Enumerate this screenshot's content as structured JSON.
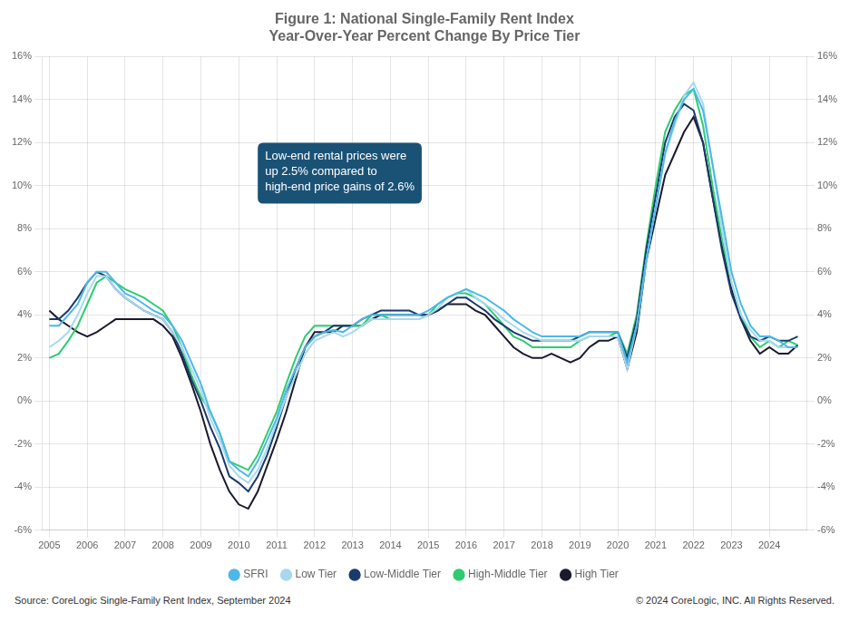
{
  "chart_data": {
    "type": "line",
    "title": "Figure 1: National Single-Family Rent Index\nYear-Over-Year Percent Change By Price Tier",
    "x": [
      2005.0,
      2005.25,
      2005.5,
      2005.75,
      2006.0,
      2006.25,
      2006.5,
      2006.75,
      2007.0,
      2007.25,
      2007.5,
      2007.75,
      2008.0,
      2008.25,
      2008.5,
      2008.75,
      2009.0,
      2009.25,
      2009.5,
      2009.75,
      2010.0,
      2010.25,
      2010.5,
      2010.75,
      2011.0,
      2011.25,
      2011.5,
      2011.75,
      2012.0,
      2012.25,
      2012.5,
      2012.75,
      2013.0,
      2013.25,
      2013.5,
      2013.75,
      2014.0,
      2014.25,
      2014.5,
      2014.75,
      2015.0,
      2015.25,
      2015.5,
      2015.75,
      2016.0,
      2016.25,
      2016.5,
      2016.75,
      2017.0,
      2017.25,
      2017.5,
      2017.75,
      2018.0,
      2018.25,
      2018.5,
      2018.75,
      2019.0,
      2019.25,
      2019.5,
      2019.75,
      2020.0,
      2020.25,
      2020.5,
      2020.75,
      2021.0,
      2021.25,
      2021.5,
      2021.75,
      2022.0,
      2022.25,
      2022.5,
      2022.75,
      2023.0,
      2023.25,
      2023.5,
      2023.75,
      2024.0,
      2024.25,
      2024.5,
      2024.75
    ],
    "xlim": [
      2004.8,
      2025.0
    ],
    "xticks": [
      2005,
      2006,
      2007,
      2008,
      2009,
      2010,
      2011,
      2012,
      2013,
      2014,
      2015,
      2016,
      2017,
      2018,
      2019,
      2020,
      2021,
      2022,
      2023,
      2024
    ],
    "ylim": [
      -6,
      16
    ],
    "yticks": [
      {
        "value": -6,
        "label": "-6%"
      },
      {
        "value": -4,
        "label": "-4%"
      },
      {
        "value": -2,
        "label": "-2%"
      },
      {
        "value": 0,
        "label": "0%"
      },
      {
        "value": 2,
        "label": "2%"
      },
      {
        "value": 4,
        "label": "4%"
      },
      {
        "value": 6,
        "label": "6%"
      },
      {
        "value": 8,
        "label": "8%"
      },
      {
        "value": 10,
        "label": "10%"
      },
      {
        "value": 12,
        "label": "12%"
      },
      {
        "value": 14,
        "label": "14%"
      },
      {
        "value": 16,
        "label": "16%"
      }
    ],
    "y2lim": [
      -6,
      16
    ],
    "y2ticks": [
      {
        "value": -6,
        "label": "-6%"
      },
      {
        "value": -4,
        "label": "-4%"
      },
      {
        "value": -2,
        "label": "-2%"
      },
      {
        "value": 0,
        "label": "0%"
      },
      {
        "value": 2,
        "label": "2%"
      },
      {
        "value": 4,
        "label": "4%"
      },
      {
        "value": 6,
        "label": "6%"
      },
      {
        "value": 8,
        "label": "8%"
      },
      {
        "value": 10,
        "label": "10%"
      },
      {
        "value": 12,
        "label": "12%"
      },
      {
        "value": 14,
        "label": "14%"
      },
      {
        "value": 16,
        "label": "16%"
      }
    ],
    "grid": true,
    "legend": "bottom",
    "series": [
      {
        "name": "SFRI",
        "color": "#4db8e8",
        "values": [
          3.5,
          3.5,
          4.0,
          4.5,
          5.5,
          6.0,
          6.0,
          5.5,
          5.0,
          4.8,
          4.5,
          4.2,
          4.0,
          3.5,
          2.8,
          1.8,
          0.8,
          -0.5,
          -1.5,
          -2.8,
          -3.2,
          -3.5,
          -2.8,
          -1.8,
          -0.8,
          0.5,
          1.5,
          2.5,
          3.0,
          3.2,
          3.3,
          3.2,
          3.5,
          3.8,
          4.0,
          4.0,
          4.0,
          4.0,
          4.0,
          4.0,
          4.2,
          4.5,
          4.8,
          5.0,
          5.2,
          5.0,
          4.8,
          4.5,
          4.2,
          3.8,
          3.5,
          3.2,
          3.0,
          3.0,
          3.0,
          3.0,
          3.0,
          3.2,
          3.2,
          3.2,
          3.2,
          1.8,
          3.5,
          6.5,
          9.0,
          11.5,
          13.0,
          14.0,
          14.5,
          13.5,
          11.0,
          8.5,
          6.0,
          4.5,
          3.5,
          3.0,
          3.0,
          2.8,
          2.5,
          2.5
        ]
      },
      {
        "name": "Low Tier",
        "color": "#a8d8f0",
        "values": [
          2.5,
          2.8,
          3.2,
          4.0,
          5.0,
          5.8,
          5.8,
          5.2,
          4.8,
          4.5,
          4.2,
          4.0,
          3.8,
          3.2,
          2.5,
          1.5,
          0.5,
          -0.8,
          -1.8,
          -3.0,
          -3.5,
          -3.8,
          -3.2,
          -2.2,
          -1.0,
          0.2,
          1.2,
          2.2,
          2.8,
          3.0,
          3.2,
          3.0,
          3.2,
          3.5,
          3.8,
          3.8,
          3.8,
          3.8,
          3.8,
          3.8,
          4.0,
          4.3,
          4.8,
          5.0,
          5.2,
          4.8,
          4.5,
          4.2,
          3.8,
          3.5,
          3.2,
          3.0,
          2.8,
          2.8,
          2.8,
          2.8,
          2.8,
          3.0,
          3.0,
          3.0,
          3.0,
          1.5,
          3.5,
          6.5,
          9.0,
          11.5,
          12.8,
          14.2,
          14.8,
          13.8,
          11.0,
          8.0,
          5.5,
          4.0,
          3.3,
          2.8,
          2.8,
          2.5,
          2.5,
          2.5
        ]
      },
      {
        "name": "Low-Middle Tier",
        "color": "#1a3a6b",
        "values": [
          3.8,
          3.8,
          4.2,
          4.8,
          5.5,
          6.0,
          5.8,
          5.2,
          4.8,
          4.5,
          4.2,
          4.0,
          3.8,
          3.2,
          2.2,
          1.0,
          0.0,
          -1.2,
          -2.2,
          -3.5,
          -3.8,
          -4.2,
          -3.5,
          -2.5,
          -1.2,
          0.2,
          1.5,
          2.5,
          3.0,
          3.2,
          3.5,
          3.5,
          3.5,
          3.8,
          4.0,
          4.2,
          4.2,
          4.2,
          4.2,
          4.0,
          4.0,
          4.2,
          4.5,
          4.8,
          4.8,
          4.5,
          4.2,
          3.8,
          3.5,
          3.2,
          3.0,
          2.8,
          2.8,
          2.8,
          2.8,
          2.8,
          3.0,
          3.2,
          3.2,
          3.2,
          3.2,
          2.0,
          3.8,
          7.0,
          9.5,
          12.0,
          13.2,
          13.8,
          13.5,
          12.0,
          9.5,
          7.0,
          5.0,
          3.8,
          3.0,
          2.8,
          3.0,
          2.8,
          2.8,
          3.0
        ]
      },
      {
        "name": "High-Middle Tier",
        "color": "#2ecc71",
        "values": [
          2.0,
          2.2,
          2.8,
          3.5,
          4.5,
          5.5,
          5.8,
          5.5,
          5.2,
          5.0,
          4.8,
          4.5,
          4.2,
          3.5,
          2.5,
          1.2,
          0.2,
          -0.5,
          -1.5,
          -2.8,
          -3.0,
          -3.2,
          -2.5,
          -1.5,
          -0.5,
          0.8,
          2.0,
          3.0,
          3.5,
          3.5,
          3.5,
          3.5,
          3.5,
          3.5,
          4.0,
          4.0,
          3.8,
          3.8,
          3.8,
          3.8,
          4.0,
          4.5,
          4.8,
          5.0,
          5.0,
          4.8,
          4.5,
          4.0,
          3.5,
          3.0,
          2.8,
          2.5,
          2.5,
          2.5,
          2.5,
          2.5,
          2.8,
          3.0,
          3.0,
          3.0,
          3.2,
          2.2,
          4.0,
          7.2,
          10.0,
          12.5,
          13.5,
          14.2,
          14.5,
          12.8,
          10.0,
          7.5,
          5.5,
          4.0,
          3.0,
          2.5,
          2.8,
          2.5,
          2.8,
          2.6
        ]
      },
      {
        "name": "High Tier",
        "color": "#1a1a2e",
        "values": [
          4.2,
          3.8,
          3.5,
          3.2,
          3.0,
          3.2,
          3.5,
          3.8,
          3.8,
          3.8,
          3.8,
          3.8,
          3.5,
          3.0,
          2.0,
          0.8,
          -0.5,
          -2.0,
          -3.2,
          -4.2,
          -4.8,
          -5.0,
          -4.2,
          -3.0,
          -1.8,
          -0.5,
          1.0,
          2.5,
          3.2,
          3.2,
          3.2,
          3.5,
          3.5,
          3.5,
          3.8,
          4.0,
          4.0,
          4.0,
          4.0,
          4.0,
          4.0,
          4.2,
          4.5,
          4.5,
          4.5,
          4.2,
          4.0,
          3.5,
          3.0,
          2.5,
          2.2,
          2.0,
          2.0,
          2.2,
          2.0,
          1.8,
          2.0,
          2.5,
          2.8,
          2.8,
          3.0,
          1.5,
          3.2,
          6.5,
          8.5,
          10.5,
          11.5,
          12.5,
          13.2,
          12.0,
          9.5,
          7.2,
          5.2,
          3.8,
          2.8,
          2.2,
          2.5,
          2.2,
          2.2,
          2.6
        ]
      }
    ],
    "annotations": [
      {
        "text": "Low-end rental prices were\nup 2.5% compared to\nhigh-end price gains of 2.6%",
        "x": 2010.5,
        "y": 12.0
      }
    ],
    "source": "Source: CoreLogic Single-Family Rent Index, September 2024",
    "copyright": "© 2024 CoreLogic, INC. All Rights Reserved."
  }
}
